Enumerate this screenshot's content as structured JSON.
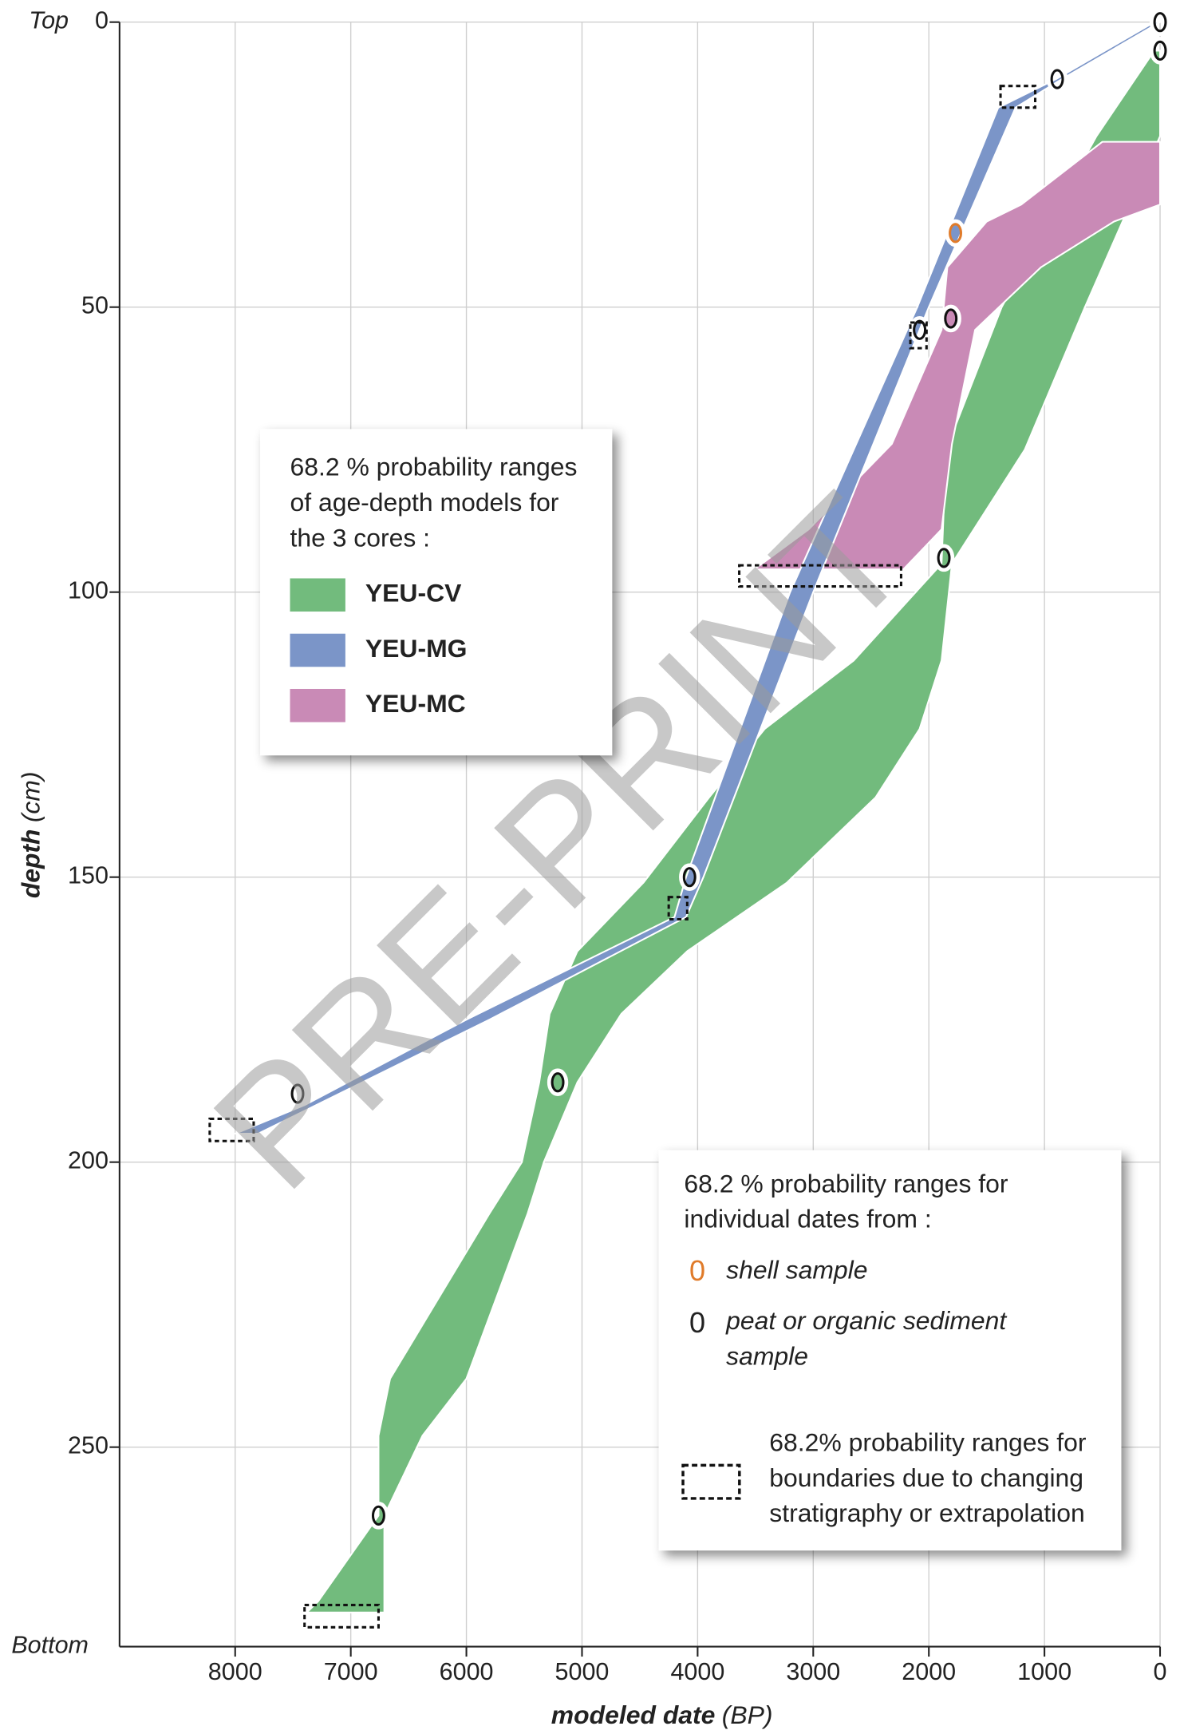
{
  "chart_data": {
    "type": "age-depth",
    "xlabel": {
      "main": "modeled date",
      "unit": "(BP)"
    },
    "ylabel": {
      "main": "depth",
      "unit": "(cm)"
    },
    "y_end_labels": [
      "Top",
      "Bottom"
    ],
    "xlim": [
      9000,
      0
    ],
    "ylim": [
      0,
      285
    ],
    "xticks": [
      8000,
      7000,
      6000,
      5000,
      4000,
      3000,
      2000,
      1000,
      0
    ],
    "yticks": [
      0,
      50,
      100,
      150,
      200,
      250
    ],
    "grid": true,
    "watermark": "PRE-PRINT",
    "series": [
      {
        "name": "YEU-CV",
        "color": "#72bb7d",
        "depth": [
          5,
          20,
          50,
          75,
          95,
          112,
          124,
          136,
          151,
          163,
          174,
          186,
          200,
          209,
          238,
          248,
          262,
          277,
          279
        ],
        "old": [
          50,
          550,
          1370,
          1850,
          1890,
          2650,
          3420,
          3900,
          4470,
          5040,
          5280,
          5370,
          5520,
          5800,
          6660,
          6760,
          6760,
          7280,
          7380
        ],
        "young": [
          0,
          0,
          650,
          1170,
          1800,
          1890,
          2080,
          2460,
          3230,
          4090,
          4660,
          5040,
          5330,
          5470,
          6000,
          6380,
          6710,
          6710,
          6710
        ]
      },
      {
        "name": "YEU-MG",
        "color": "#7b95c8",
        "depth": [
          0,
          10,
          15,
          50,
          100,
          150,
          157,
          175,
          190,
          195
        ],
        "old": [
          50,
          900,
          1400,
          2100,
          3200,
          4100,
          4200,
          6000,
          7400,
          8000
        ],
        "young": [
          0,
          850,
          1250,
          2000,
          3000,
          3950,
          4100,
          5800,
          7300,
          7800
        ]
      },
      {
        "name": "YEU-MC",
        "color": "#c98ab6",
        "depth": [
          21,
          32,
          35,
          43,
          54,
          74,
          89,
          96
        ],
        "old": [
          500,
          1200,
          1500,
          1840,
          1890,
          2320,
          3040,
          3510
        ],
        "young": [
          0,
          0,
          400,
          1030,
          1600,
          1800,
          1890,
          2220
        ]
      }
    ],
    "dates": {
      "depth": [
        0,
        5,
        10,
        37,
        52,
        54,
        94,
        150,
        186,
        188,
        262
      ],
      "date": [
        0,
        0,
        890,
        1770,
        1810,
        2080,
        1870,
        4070,
        5210,
        7460,
        6760
      ],
      "kind": [
        "peat",
        "peat",
        "peat",
        "shell",
        "peat",
        "peat",
        "peat",
        "peat",
        "peat",
        "peat",
        "peat"
      ]
    },
    "boundaries": {
      "depth_top": [
        11.2,
        52.7,
        95.3,
        153.5,
        192.4,
        277.7
      ],
      "depth_bottom": [
        15,
        57.2,
        99,
        157.4,
        196.3,
        281.6
      ],
      "old": [
        1380,
        2160,
        3640,
        4250,
        8220,
        7400
      ],
      "young": [
        1080,
        2020,
        2240,
        4090,
        7840,
        6760
      ]
    },
    "legend_models": {
      "title": [
        "68.2 % probability ranges",
        "of age-depth models for",
        "the 3 cores :"
      ]
    },
    "legend_dates": {
      "title": [
        "68.2 % probability ranges for",
        "individual dates from :"
      ],
      "symbol": "0",
      "shell": [
        "shell sample"
      ],
      "peat": [
        "peat or organic sediment",
        "sample"
      ],
      "boundary": [
        "68.2% probability ranges for",
        "boundaries due to changing",
        "stratigraphy or extrapolation"
      ]
    }
  }
}
